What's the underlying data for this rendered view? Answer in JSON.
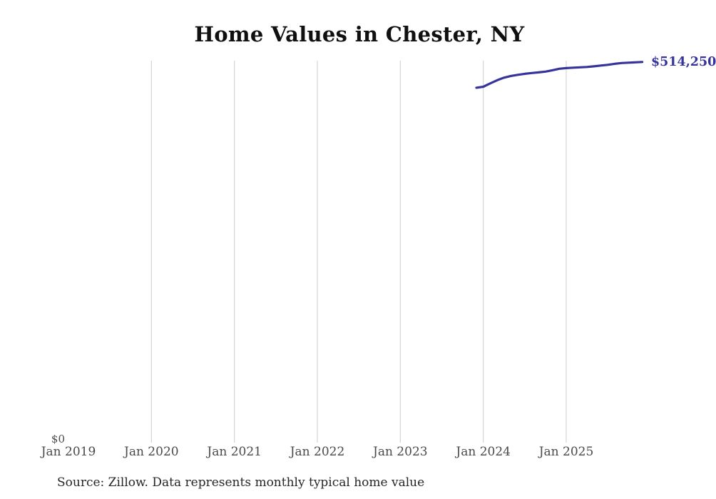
{
  "page": {
    "background": "#ffffff"
  },
  "theme": {
    "line_color": "#36349b",
    "grid_color": "#cccccc",
    "axis_text_color": "#4a4a4a",
    "title_color": "#101010",
    "source_text_color": "#262626",
    "end_label_color": "#36349b"
  },
  "chart_data": {
    "type": "line",
    "title": "Home Values in Chester, NY",
    "source_note": "Source: Zillow. Data represents monthly typical home value",
    "legend": "none",
    "grid": "vertical-only",
    "x": [
      "2023-12",
      "2024-01",
      "2024-02",
      "2024-03",
      "2024-04",
      "2024-05",
      "2024-06",
      "2024-07",
      "2024-08",
      "2024-09",
      "2024-10",
      "2024-11",
      "2024-12",
      "2025-01",
      "2025-02",
      "2025-03",
      "2025-04",
      "2025-05",
      "2025-06",
      "2025-07",
      "2025-08",
      "2025-09",
      "2025-10",
      "2025-11",
      "2025-12"
    ],
    "series": [
      {
        "name": "Monthly typical home value",
        "values": [
          479400,
          480800,
          485300,
          489600,
          493000,
          495400,
          496900,
          498300,
          499300,
          500200,
          501200,
          503100,
          505100,
          506000,
          506500,
          507000,
          507500,
          508400,
          509400,
          510400,
          511800,
          512800,
          513300,
          513800,
          514250
        ]
      }
    ],
    "end_label": "$514,250",
    "y_axis": {
      "zero_label": "$0",
      "ylim": [
        0,
        516000
      ]
    },
    "x_ticks": [
      {
        "label": "Jan 2019",
        "month": "2019-01",
        "gridline": false
      },
      {
        "label": "Jan 2020",
        "month": "2020-01",
        "gridline": true
      },
      {
        "label": "Jan 2021",
        "month": "2021-01",
        "gridline": true
      },
      {
        "label": "Jan 2022",
        "month": "2022-01",
        "gridline": true
      },
      {
        "label": "Jan 2023",
        "month": "2023-01",
        "gridline": true
      },
      {
        "label": "Jan 2024",
        "month": "2024-01",
        "gridline": true
      },
      {
        "label": "Jan 2025",
        "month": "2025-01",
        "gridline": true
      }
    ]
  }
}
